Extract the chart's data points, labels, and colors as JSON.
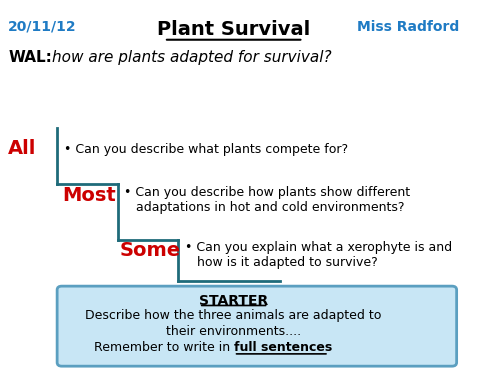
{
  "bg_color": "#ffffff",
  "date_text": "20/11/12",
  "date_color": "#1f7bc4",
  "teacher_text": "Miss Radford",
  "teacher_color": "#1f7bc4",
  "title_text": "Plant Survival",
  "wal_label": "WAL:",
  "wal_question": "how are plants adapted for survival?",
  "all_label": "All",
  "all_color": "#cc0000",
  "all_text": "• Can you describe what plants compete for?",
  "most_label": "Most",
  "most_color": "#cc0000",
  "most_text": "• Can you describe how plants show different\n   adaptations in hot and cold environments?",
  "some_label": "Some",
  "some_color": "#cc0000",
  "some_text": "• Can you explain what a xerophyte is and\n   how is it adapted to survive?",
  "stair_color": "#1f6b7a",
  "starter_box_color": "#c8e6f5",
  "starter_box_border": "#5b9fc0",
  "starter_title": "STARTER",
  "starter_line1": "Describe how the three animals are adapted to",
  "starter_line2": "their environments....",
  "starter_line3_prefix": "Remember to write in ",
  "starter_line3_bold": "full sentences"
}
